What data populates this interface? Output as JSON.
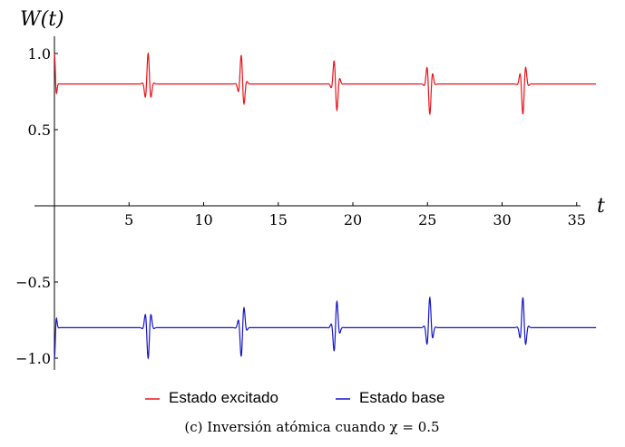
{
  "chart_data": {
    "type": "line",
    "title": "",
    "ylabel": "W(t)",
    "xlabel": "t",
    "xlim": [
      0,
      36.5
    ],
    "ylim": [
      -1.05,
      1.05
    ],
    "x_ticks": [
      {
        "value": 5,
        "label": "5"
      },
      {
        "value": 10,
        "label": "10"
      },
      {
        "value": 15,
        "label": "15"
      },
      {
        "value": 20,
        "label": "20"
      },
      {
        "value": 25,
        "label": "25"
      },
      {
        "value": 30,
        "label": "30"
      },
      {
        "value": 35,
        "label": "35"
      }
    ],
    "y_ticks": [
      {
        "value": 1.0,
        "label": "1.0"
      },
      {
        "value": 0.5,
        "label": "0.5"
      },
      {
        "value": -0.5,
        "label": "−0.5"
      },
      {
        "value": -1.0,
        "label": "−1.0"
      }
    ],
    "revival_times": [
      6.28,
      12.57,
      18.85,
      25.13,
      31.42
    ],
    "series": [
      {
        "name": "Estado excitado",
        "color": "#e8141b",
        "baseline": 0.8,
        "initial_value": 1.0,
        "revival_amplitude": 0.2
      },
      {
        "name": "Estado base",
        "color": "#1515c8",
        "baseline": -0.8,
        "initial_value": -1.0,
        "revival_amplitude": 0.2
      }
    ],
    "legend_position": "bottom-center",
    "grid": false
  },
  "caption": "(c) Inversión atómica cuando χ = 0.5"
}
